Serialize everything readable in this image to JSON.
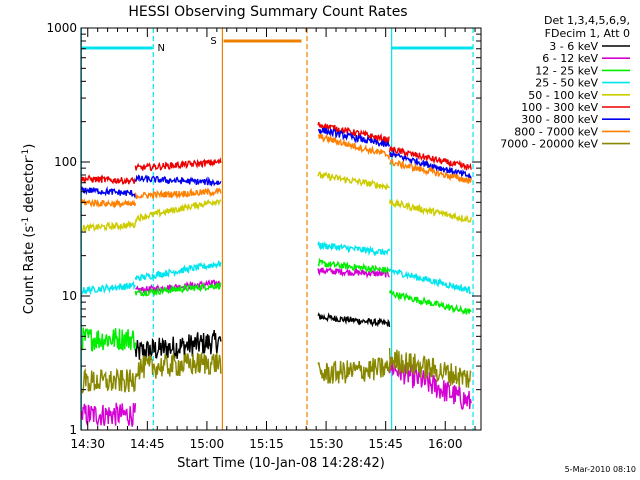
{
  "chart_data": {
    "type": "line",
    "title": "HESSI Observing Summary Count Rates",
    "xlabel": "Start Time (10-Jan-08 14:28:42)",
    "ylabel": "Count Rate (s",
    "ylabel_sup1": "-1",
    "ylabel_mid": " detector",
    "ylabel_sup2": "-1",
    "ylabel_end": ")",
    "yscale": "log",
    "ylim": [
      1,
      1000
    ],
    "xlim_minutes": [
      -1.7,
      99
    ],
    "x_ticks": [
      {
        "label": "14:30",
        "minute": 0
      },
      {
        "label": "14:45",
        "minute": 15
      },
      {
        "label": "15:00",
        "minute": 30
      },
      {
        "label": "15:15",
        "minute": 45
      },
      {
        "label": "15:30",
        "minute": 60
      },
      {
        "label": "15:45",
        "minute": 75
      },
      {
        "label": "16:00",
        "minute": 90
      }
    ],
    "y_ticks": [
      {
        "label": "1",
        "value": 1
      },
      {
        "label": "10",
        "value": 10
      },
      {
        "label": "100",
        "value": 100
      },
      {
        "label": "1000",
        "value": 1000
      }
    ],
    "legend": {
      "placement": "right",
      "header": [
        "Det 1,3,4,5,6,9,",
        "FDecim 1, Att 0"
      ]
    },
    "timestamp": "5-Mar-2010 08:10",
    "intervals": {
      "night_lines": [
        {
          "minute": -1.6,
          "style": "solid"
        },
        {
          "minute": 16.5,
          "style": "dashed"
        },
        {
          "minute": 76.5,
          "style": "solid"
        },
        {
          "minute": 97,
          "style": "dashed"
        }
      ],
      "night_bars": [
        {
          "start": -1.6,
          "end": 16.3
        },
        {
          "start": 76.6,
          "end": 96.9
        }
      ],
      "night_label": "N",
      "saa_lines": [
        {
          "minute": 33.9,
          "style": "solid"
        },
        {
          "minute": 55.2,
          "style": "dashed"
        }
      ],
      "saa_bar": {
        "start": 34.2,
        "end": 53.8
      },
      "saa_label": "S",
      "night_color": "#00e5ee",
      "saa_color": "#ee8000"
    },
    "series": [
      {
        "name": "3 - 6 keV",
        "color": "#000000",
        "segments": [
          {
            "x": [
              12,
              33.5
            ],
            "y": [
              3.8,
              4.6
            ]
          },
          {
            "x": [
              58,
              76
            ],
            "y": [
              7.0,
              6.2
            ]
          }
        ]
      },
      {
        "name": "6 - 12 keV",
        "color": "#d400d4",
        "segments": [
          {
            "x": [
              -1.5,
              12
            ],
            "y": [
              1.3,
              1.3
            ]
          },
          {
            "x": [
              12,
              33.5
            ],
            "y": [
              11.0,
              12.5
            ]
          },
          {
            "x": [
              58,
              76
            ],
            "y": [
              15.5,
              14.5
            ]
          },
          {
            "x": [
              76,
              96.5
            ],
            "y": [
              3.0,
              1.6
            ]
          }
        ]
      },
      {
        "name": "12 - 25 keV",
        "color": "#00ee00",
        "segments": [
          {
            "x": [
              -1.5,
              12
            ],
            "y": [
              4.8,
              4.8
            ]
          },
          {
            "x": [
              12,
              33.5
            ],
            "y": [
              10.5,
              12.0
            ]
          },
          {
            "x": [
              58,
              76
            ],
            "y": [
              17.5,
              15.5
            ]
          },
          {
            "x": [
              76,
              96.5
            ],
            "y": [
              10.5,
              7.5
            ]
          }
        ]
      },
      {
        "name": "25 - 50 keV",
        "color": "#00e5ee",
        "segments": [
          {
            "x": [
              -1.5,
              12
            ],
            "y": [
              11.0,
              12.0
            ]
          },
          {
            "x": [
              12,
              33.5
            ],
            "y": [
              13.5,
              17.5
            ]
          },
          {
            "x": [
              58,
              76
            ],
            "y": [
              24.0,
              21.0
            ]
          },
          {
            "x": [
              76,
              96.5
            ],
            "y": [
              15.5,
              11.0
            ]
          }
        ]
      },
      {
        "name": "50 - 100 keV",
        "color": "#cccc00",
        "segments": [
          {
            "x": [
              -1.5,
              12
            ],
            "y": [
              32.0,
              34.0
            ]
          },
          {
            "x": [
              12,
              33.5
            ],
            "y": [
              38.0,
              52.0
            ]
          },
          {
            "x": [
              58,
              76
            ],
            "y": [
              80.0,
              65.0
            ]
          },
          {
            "x": [
              76,
              96.5
            ],
            "y": [
              50.0,
              37.0
            ]
          }
        ]
      },
      {
        "name": "100 - 300 keV",
        "color": "#ee0000",
        "segments": [
          {
            "x": [
              -1.5,
              12
            ],
            "y": [
              75.0,
              72.0
            ]
          },
          {
            "x": [
              12,
              33.5
            ],
            "y": [
              90.0,
              100.0
            ]
          },
          {
            "x": [
              58,
              76
            ],
            "y": [
              190.0,
              145.0
            ]
          },
          {
            "x": [
              76,
              96.5
            ],
            "y": [
              125.0,
              90.0
            ]
          }
        ]
      },
      {
        "name": "300 - 800 keV",
        "color": "#0000ee",
        "segments": [
          {
            "x": [
              -1.5,
              12
            ],
            "y": [
              62.0,
              58.0
            ]
          },
          {
            "x": [
              12,
              33.5
            ],
            "y": [
              75.0,
              70.0
            ]
          },
          {
            "x": [
              58,
              76
            ],
            "y": [
              175.0,
              132.0
            ]
          },
          {
            "x": [
              76,
              96.5
            ],
            "y": [
              115.0,
              78.0
            ]
          }
        ]
      },
      {
        "name": "800 - 7000 keV",
        "color": "#ff8000",
        "segments": [
          {
            "x": [
              -1.5,
              12
            ],
            "y": [
              50.0,
              48.0
            ]
          },
          {
            "x": [
              12,
              33.5
            ],
            "y": [
              56.0,
              60.0
            ]
          },
          {
            "x": [
              58,
              76
            ],
            "y": [
              155.0,
              112.0
            ]
          },
          {
            "x": [
              76,
              96.5
            ],
            "y": [
              100.0,
              72.0
            ]
          }
        ]
      },
      {
        "name": "7000 - 20000 keV",
        "color": "#888800",
        "segments": [
          {
            "x": [
              -1.5,
              12
            ],
            "y": [
              2.3,
              2.3
            ]
          },
          {
            "x": [
              12,
              33.5
            ],
            "y": [
              2.9,
              3.2
            ]
          },
          {
            "x": [
              58,
              76
            ],
            "y": [
              2.6,
              2.9
            ]
          },
          {
            "x": [
              76,
              96.5
            ],
            "y": [
              3.4,
              2.4
            ]
          }
        ]
      }
    ]
  }
}
